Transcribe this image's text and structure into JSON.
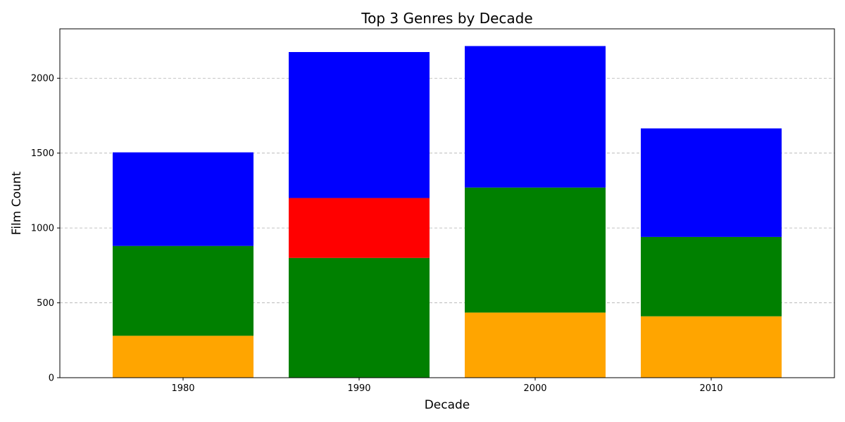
{
  "chart_data": {
    "type": "bar",
    "stacked": true,
    "title": "Top 3 Genres by Decade",
    "xlabel": "Decade",
    "ylabel": "Film Count",
    "categories": [
      "1980",
      "1990",
      "2000",
      "2010"
    ],
    "ylim": [
      0,
      2330
    ],
    "yticks": [
      0,
      500,
      1000,
      1500,
      2000
    ],
    "grid": "y-dashed",
    "stacks": [
      [
        {
          "value": 280,
          "color": "#ffa500"
        },
        {
          "value": 600,
          "color": "#008000"
        },
        {
          "value": 625,
          "color": "#0000ff"
        }
      ],
      [
        {
          "value": 800,
          "color": "#008000"
        },
        {
          "value": 400,
          "color": "#ff0000"
        },
        {
          "value": 975,
          "color": "#0000ff"
        }
      ],
      [
        {
          "value": 435,
          "color": "#ffa500"
        },
        {
          "value": 835,
          "color": "#008000"
        },
        {
          "value": 945,
          "color": "#0000ff"
        }
      ],
      [
        {
          "value": 410,
          "color": "#ffa500"
        },
        {
          "value": 530,
          "color": "#008000"
        },
        {
          "value": 725,
          "color": "#0000ff"
        }
      ]
    ]
  }
}
